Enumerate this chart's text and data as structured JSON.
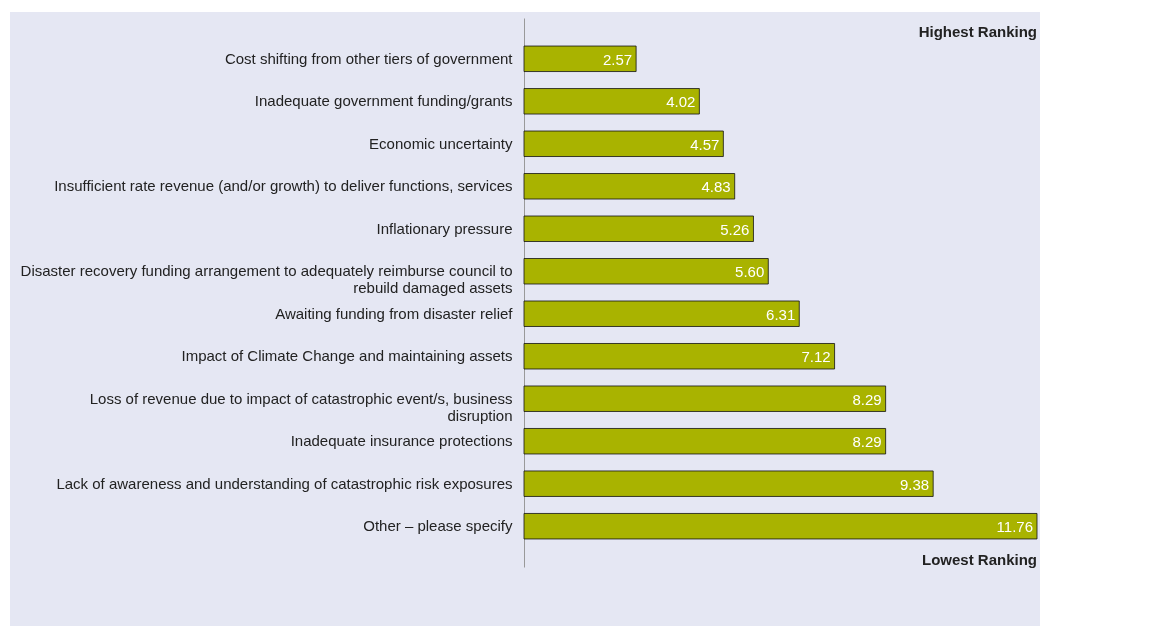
{
  "chart_data": {
    "type": "bar",
    "orientation": "horizontal",
    "data_labels": true,
    "color": "#a9b300",
    "categories": [
      "Cost shifting from other tiers of government",
      "Inadequate government funding/grants",
      "Economic uncertainty",
      "Insufficient  rate revenue (and/or growth) to deliver functions, services",
      "Inflationary pressure",
      "Disaster recovery funding arrangement to adequately reimburse council to rebuild damaged assets",
      "Awaiting funding from disaster relief",
      "Impact of Climate Change and maintaining assets",
      "Loss of revenue due to impact of catastrophic event/s, business disruption",
      "Inadequate insurance protections",
      "Lack of awareness and understanding of catastrophic risk exposures",
      "Other – please specify"
    ],
    "values": [
      2.57,
      4.02,
      4.57,
      4.83,
      5.26,
      5.6,
      6.31,
      7.12,
      8.29,
      8.29,
      9.38,
      11.76
    ],
    "value_labels": [
      "2.57",
      "4.02",
      "4.57",
      "4.83",
      "5.26",
      "5.60",
      "6.31",
      "7.12",
      "8.29",
      "8.29",
      "9.38",
      "11.76"
    ],
    "annotations": [
      "Highest Ranking",
      "Lowest Ranking"
    ]
  }
}
